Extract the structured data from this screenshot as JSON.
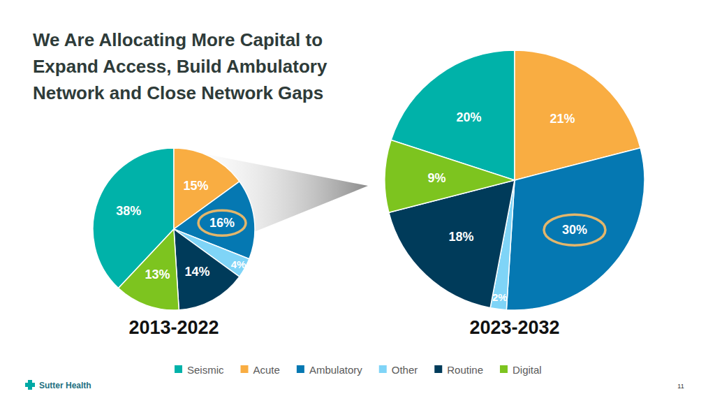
{
  "title": [
    "We Are Allocating More Capital to",
    "Expand Access, Build Ambulatory",
    "Network and Close Network Gaps"
  ],
  "logo": "Sutter Health",
  "page_number": "11",
  "chart_data": [
    {
      "type": "pie",
      "title": "2013-2022",
      "categories": [
        "Seismic",
        "Acute",
        "Ambulatory",
        "Other",
        "Routine",
        "Digital"
      ],
      "values": [
        38,
        15,
        16,
        4,
        14,
        13
      ],
      "value_labels": [
        "38%",
        "15%",
        "16%",
        "4%",
        "14%",
        "13%"
      ],
      "colors": [
        "#00b2a9",
        "#f9ad42",
        "#0578b2",
        "#7fd4f7",
        "#003b5a",
        "#7dc41f"
      ],
      "data_labels": true,
      "legend": "bottom"
    },
    {
      "type": "pie",
      "title": "2023-2032",
      "categories": [
        "Seismic",
        "Acute",
        "Ambulatory",
        "Other",
        "Routine",
        "Digital"
      ],
      "values": [
        20,
        21,
        30,
        2,
        18,
        9
      ],
      "value_labels": [
        "20%",
        "21%",
        "30%",
        "2%",
        "18%",
        "9%"
      ],
      "colors": [
        "#00b2a9",
        "#f9ad42",
        "#0578b2",
        "#7fd4f7",
        "#003b5a",
        "#7dc41f"
      ],
      "data_labels": true
    }
  ]
}
